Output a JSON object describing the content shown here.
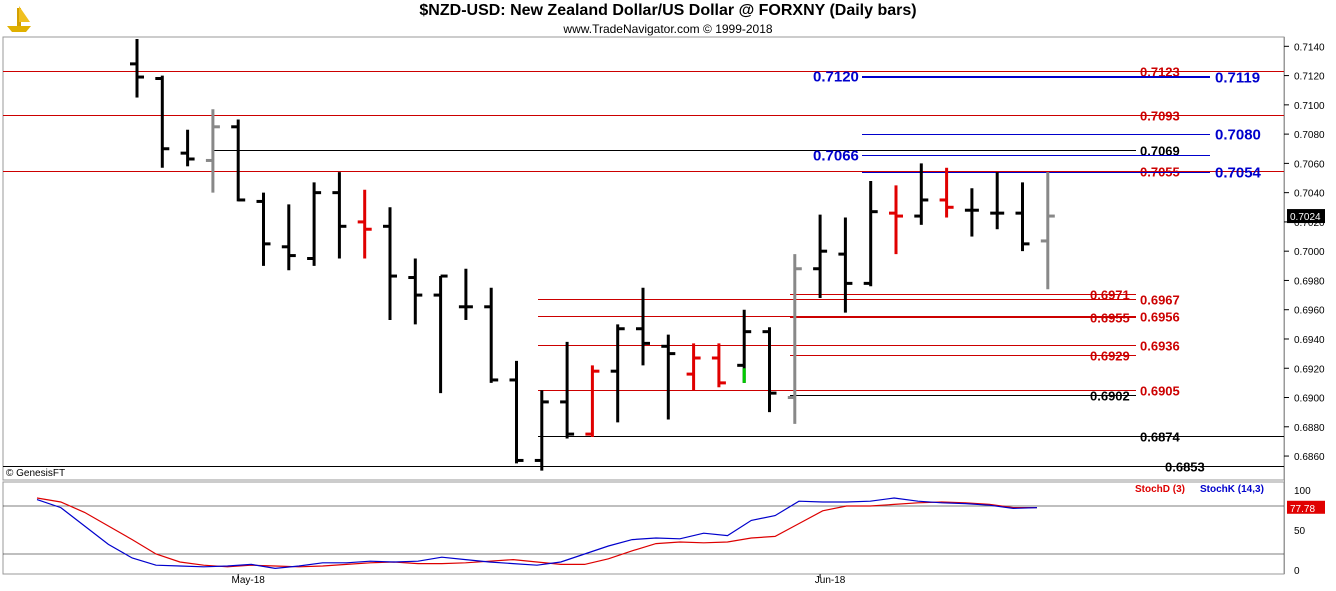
{
  "header": {
    "title": "$NZD-USD:  New Zealand Dollar/US Dollar @ FORXNY  (Daily bars)",
    "subtitle": "www.TradeNavigator.com © 1999-2018"
  },
  "copyright": "© GenesisFT",
  "colors": {
    "bar_black": "#000000",
    "bar_red": "#e00000",
    "bar_gray": "#888888",
    "bar_green": "#00cc00",
    "level_red": "#cc0000",
    "level_blue": "#0000cc",
    "level_black": "#000000",
    "stochd": "#dd0000",
    "stochk": "#0000cc"
  },
  "chart_data": [
    {
      "type": "ohlc",
      "name": "price",
      "ylim": [
        0.6845,
        0.7145
      ],
      "y_ticks": [
        "0.7140",
        "0.7120",
        "0.7100",
        "0.7080",
        "0.7060",
        "0.7040",
        "0.7020",
        "0.7000",
        "0.6980",
        "0.6960",
        "0.6940",
        "0.6920",
        "0.6900",
        "0.6880",
        "0.6860"
      ],
      "last_price_label": "0.7024",
      "bars": [
        {
          "h": 0.7145,
          "l": 0.7105,
          "o": 0.7128,
          "c": 0.7119,
          "color": "black"
        },
        {
          "h": 0.712,
          "l": 0.7057,
          "o": 0.7118,
          "c": 0.707,
          "color": "black"
        },
        {
          "h": 0.7083,
          "l": 0.7058,
          "o": 0.7067,
          "c": 0.7063,
          "color": "black"
        },
        {
          "h": 0.7097,
          "l": 0.704,
          "o": 0.7062,
          "c": 0.7085,
          "color": "gray"
        },
        {
          "h": 0.709,
          "l": 0.7034,
          "o": 0.7085,
          "c": 0.7035,
          "color": "black"
        },
        {
          "h": 0.704,
          "l": 0.699,
          "o": 0.7034,
          "c": 0.7005,
          "color": "black"
        },
        {
          "h": 0.7032,
          "l": 0.6987,
          "o": 0.7003,
          "c": 0.6997,
          "color": "black"
        },
        {
          "h": 0.7047,
          "l": 0.699,
          "o": 0.6995,
          "c": 0.704,
          "color": "black"
        },
        {
          "h": 0.7054,
          "l": 0.6995,
          "o": 0.704,
          "c": 0.7017,
          "color": "black"
        },
        {
          "h": 0.7042,
          "l": 0.6995,
          "o": 0.702,
          "c": 0.7015,
          "color": "red"
        },
        {
          "h": 0.703,
          "l": 0.6953,
          "o": 0.7017,
          "c": 0.6983,
          "color": "black"
        },
        {
          "h": 0.6995,
          "l": 0.695,
          "o": 0.6982,
          "c": 0.697,
          "color": "black"
        },
        {
          "h": 0.6983,
          "l": 0.6903,
          "o": 0.697,
          "c": 0.6983,
          "color": "black"
        },
        {
          "h": 0.6988,
          "l": 0.6953,
          "o": 0.6962,
          "c": 0.6962,
          "color": "black"
        },
        {
          "h": 0.6975,
          "l": 0.691,
          "o": 0.6962,
          "c": 0.6912,
          "color": "black"
        },
        {
          "h": 0.6925,
          "l": 0.6855,
          "o": 0.6912,
          "c": 0.6857,
          "color": "black"
        },
        {
          "h": 0.6905,
          "l": 0.685,
          "o": 0.6857,
          "c": 0.6897,
          "color": "black"
        },
        {
          "h": 0.6938,
          "l": 0.6872,
          "o": 0.6897,
          "c": 0.6875,
          "color": "black"
        },
        {
          "h": 0.6922,
          "l": 0.6873,
          "o": 0.6875,
          "c": 0.6918,
          "color": "red"
        },
        {
          "h": 0.695,
          "l": 0.6883,
          "o": 0.6918,
          "c": 0.6947,
          "color": "black"
        },
        {
          "h": 0.6975,
          "l": 0.6922,
          "o": 0.6947,
          "c": 0.6937,
          "color": "black"
        },
        {
          "h": 0.6943,
          "l": 0.6885,
          "o": 0.6935,
          "c": 0.693,
          "color": "black"
        },
        {
          "h": 0.6937,
          "l": 0.6905,
          "o": 0.6916,
          "c": 0.6927,
          "color": "red"
        },
        {
          "h": 0.6937,
          "l": 0.6907,
          "o": 0.6927,
          "c": 0.691,
          "color": "red"
        },
        {
          "h": 0.696,
          "l": 0.691,
          "o": 0.6922,
          "c": 0.6945,
          "color": "black"
        },
        {
          "h": 0.6948,
          "l": 0.689,
          "o": 0.6945,
          "c": 0.6903,
          "color": "black"
        },
        {
          "h": 0.6998,
          "l": 0.6882,
          "o": 0.69,
          "c": 0.6988,
          "color": "gray"
        },
        {
          "h": 0.7025,
          "l": 0.6968,
          "o": 0.6988,
          "c": 0.7,
          "color": "black"
        },
        {
          "h": 0.7023,
          "l": 0.6958,
          "o": 0.6998,
          "c": 0.6978,
          "color": "black"
        },
        {
          "h": 0.7048,
          "l": 0.6976,
          "o": 0.6978,
          "c": 0.7027,
          "color": "black"
        },
        {
          "h": 0.7045,
          "l": 0.6998,
          "o": 0.7026,
          "c": 0.7024,
          "color": "red"
        },
        {
          "h": 0.706,
          "l": 0.7018,
          "o": 0.7024,
          "c": 0.7035,
          "color": "black"
        },
        {
          "h": 0.7057,
          "l": 0.7023,
          "o": 0.7035,
          "c": 0.703,
          "color": "red"
        },
        {
          "h": 0.7043,
          "l": 0.701,
          "o": 0.7028,
          "c": 0.7028,
          "color": "black"
        },
        {
          "h": 0.7054,
          "l": 0.7015,
          "o": 0.7026,
          "c": 0.7026,
          "color": "black"
        },
        {
          "h": 0.7047,
          "l": 0.7,
          "o": 0.7026,
          "c": 0.7005,
          "color": "black"
        },
        {
          "h": 0.7054,
          "l": 0.6974,
          "o": 0.7007,
          "c": 0.7024,
          "color": "gray"
        }
      ],
      "x_labels": [
        {
          "label": "May-18",
          "bar": 4
        },
        {
          "label": "Jun-18",
          "bar": 27
        }
      ]
    },
    {
      "type": "line",
      "name": "stochastic",
      "ylim": [
        0,
        100
      ],
      "y_ticks": [
        "100",
        "50",
        "0"
      ],
      "last_value_label": "77.78",
      "series": [
        {
          "name": "StochD (3)",
          "color": "#dd0000",
          "values": [
            90,
            85,
            72,
            55,
            38,
            20,
            10,
            6,
            4,
            6,
            5,
            4,
            5,
            7,
            9,
            10,
            8,
            8,
            9,
            11,
            13,
            10,
            7,
            7,
            14,
            24,
            33,
            35,
            34,
            35,
            40,
            42,
            58,
            74,
            80,
            80,
            82,
            84,
            85,
            84,
            82,
            78,
            78
          ]
        },
        {
          "name": "StochK (14,3)",
          "color": "#0000cc",
          "values": [
            88,
            78,
            55,
            32,
            15,
            6,
            5,
            4,
            5,
            7,
            2,
            5,
            9,
            9,
            11,
            10,
            11,
            16,
            13,
            10,
            8,
            6,
            10,
            20,
            30,
            38,
            40,
            39,
            46,
            43,
            62,
            68,
            86,
            85,
            85,
            86,
            90,
            86,
            84,
            83,
            81,
            77,
            78
          ]
        }
      ]
    }
  ],
  "levels": [
    {
      "value": 0.7123,
      "label": "0.7123",
      "color": "red",
      "x_from": "left",
      "label_x": "right"
    },
    {
      "value": 0.712,
      "label": "0.7120",
      "color": "blue",
      "x_from": "mid",
      "label_x": "blue_left"
    },
    {
      "value": 0.7119,
      "label": "0.7119",
      "color": "blue",
      "x_from": "mid",
      "label_x": "blue_right"
    },
    {
      "value": 0.7093,
      "label": "0.7093",
      "color": "red",
      "x_from": "left",
      "label_x": "right"
    },
    {
      "value": 0.708,
      "label": "0.7080",
      "color": "blue",
      "x_from": "mid",
      "label_x": "blue_right"
    },
    {
      "value": 0.7069,
      "label": "0.7069",
      "color": "black",
      "x_from": "may",
      "label_x": "right"
    },
    {
      "value": 0.7066,
      "label": "0.7066",
      "color": "blue",
      "x_from": "mid",
      "label_x": "blue_left"
    },
    {
      "value": 0.7055,
      "label": "0.7055",
      "color": "red",
      "x_from": "left",
      "label_x": "right"
    },
    {
      "value": 0.7054,
      "label": "0.7054",
      "color": "blue",
      "x_from": "mid",
      "label_x": "blue_right"
    },
    {
      "value": 0.6971,
      "label": "0.6971",
      "color": "red",
      "x_from": "jun",
      "label_x": "left_red"
    },
    {
      "value": 0.6967,
      "label": "0.6967",
      "color": "red",
      "x_from": "low",
      "label_x": "right"
    },
    {
      "value": 0.6956,
      "label": "0.6956",
      "color": "red",
      "x_from": "low",
      "label_x": "right"
    },
    {
      "value": 0.6955,
      "label": "0.6955",
      "color": "red",
      "x_from": "jun",
      "label_x": "left_red"
    },
    {
      "value": 0.6936,
      "label": "0.6936",
      "color": "red",
      "x_from": "low",
      "label_x": "right"
    },
    {
      "value": 0.6929,
      "label": "0.6929",
      "color": "red",
      "x_from": "jun",
      "label_x": "left_red"
    },
    {
      "value": 0.6905,
      "label": "0.6905",
      "color": "red",
      "x_from": "low",
      "label_x": "right"
    },
    {
      "value": 0.6902,
      "label": "0.6902",
      "color": "black",
      "x_from": "jun",
      "label_x": "left_red"
    },
    {
      "value": 0.6874,
      "label": "0.6874",
      "color": "black",
      "x_from": "low",
      "label_x": "right_wide"
    },
    {
      "value": 0.6853,
      "label": "0.6853",
      "color": "black",
      "x_from": "left",
      "label_x": "right_wider"
    }
  ]
}
